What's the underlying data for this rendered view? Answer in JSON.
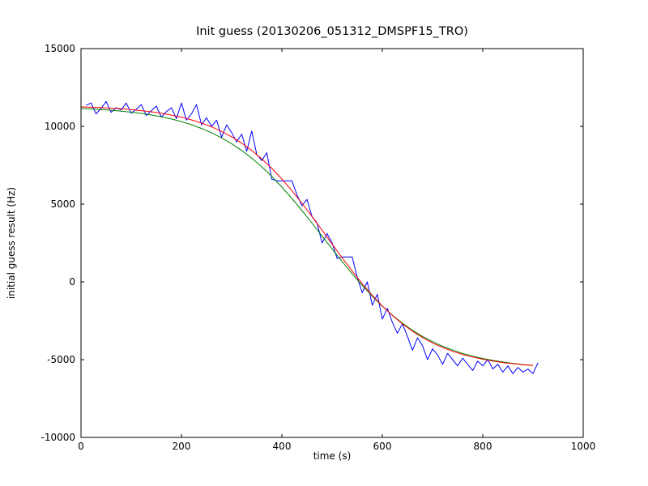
{
  "chart_data": {
    "type": "line",
    "title": "Init guess (20130206_051312_DMSPF15_TRO)",
    "xlabel": "time (s)",
    "ylabel": "initial guess result (Hz)",
    "xlim": [
      0,
      1000
    ],
    "ylim": [
      -10000,
      15000
    ],
    "xticks": [
      0,
      200,
      400,
      600,
      800,
      1000
    ],
    "yticks": [
      -10000,
      -5000,
      0,
      5000,
      10000,
      15000
    ],
    "grid": false,
    "legend_position": "none",
    "frame_color": "#000000",
    "series": [
      {
        "name": "raw-initial-guess",
        "color": "#0000ff",
        "x": [
          10,
          20,
          30,
          40,
          50,
          60,
          70,
          80,
          90,
          100,
          110,
          120,
          130,
          140,
          150,
          160,
          170,
          180,
          190,
          200,
          210,
          220,
          230,
          240,
          250,
          260,
          270,
          280,
          290,
          300,
          310,
          320,
          330,
          340,
          350,
          360,
          370,
          380,
          390,
          400,
          410,
          420,
          430,
          440,
          450,
          460,
          470,
          480,
          490,
          500,
          510,
          520,
          530,
          540,
          550,
          560,
          570,
          580,
          590,
          600,
          610,
          620,
          630,
          640,
          650,
          660,
          670,
          680,
          690,
          700,
          710,
          720,
          730,
          740,
          750,
          760,
          770,
          780,
          790,
          800,
          810,
          820,
          830,
          840,
          850,
          860,
          870,
          880,
          890,
          900,
          910
        ],
        "y": [
          11350,
          11500,
          10800,
          11150,
          11600,
          10900,
          11200,
          11050,
          11500,
          10850,
          11100,
          11400,
          10700,
          11000,
          11300,
          10600,
          10950,
          11200,
          10500,
          11500,
          10400,
          10800,
          11400,
          10100,
          10550,
          10000,
          10400,
          9300,
          10100,
          9600,
          9000,
          9500,
          8400,
          9700,
          8200,
          7800,
          8300,
          6600,
          6500,
          6500,
          6500,
          6500,
          5600,
          4900,
          5300,
          4200,
          3800,
          2500,
          3100,
          2500,
          1500,
          1600,
          1600,
          1600,
          300,
          -700,
          0,
          -1500,
          -800,
          -2400,
          -1700,
          -2600,
          -3300,
          -2700,
          -3500,
          -4400,
          -3600,
          -4100,
          -5000,
          -4300,
          -4700,
          -5300,
          -4600,
          -5000,
          -5400,
          -4900,
          -5300,
          -5700,
          -5100,
          -5400,
          -5000,
          -5600,
          -5300,
          -5800,
          -5400,
          -5900,
          -5500,
          -5800,
          -5600,
          -5900,
          -5200
        ]
      },
      {
        "name": "fit-green",
        "color": "#008000",
        "x": [
          0,
          20,
          40,
          60,
          80,
          100,
          120,
          140,
          160,
          180,
          200,
          220,
          240,
          260,
          280,
          300,
          320,
          340,
          360,
          380,
          400,
          420,
          440,
          460,
          480,
          500,
          520,
          540,
          560,
          580,
          600,
          620,
          640,
          660,
          680,
          700,
          720,
          740,
          760,
          780,
          800,
          820,
          840,
          860,
          880,
          900
        ],
        "y": [
          11153,
          11121,
          11083,
          11036,
          10980,
          10912,
          10831,
          10733,
          10615,
          10473,
          10305,
          10104,
          9867,
          9588,
          9262,
          8883,
          8448,
          7952,
          7394,
          6774,
          6095,
          5362,
          4585,
          3777,
          2950,
          2120,
          1305,
          517,
          -230,
          -926,
          -1565,
          -2141,
          -2656,
          -3109,
          -3504,
          -3846,
          -4138,
          -4387,
          -4598,
          -4776,
          -4925,
          -5049,
          -5153,
          -5239,
          -5310,
          -5370
        ]
      },
      {
        "name": "fit-red",
        "color": "#ff0000",
        "x": [
          0,
          20,
          40,
          60,
          80,
          100,
          120,
          140,
          160,
          180,
          200,
          220,
          240,
          260,
          280,
          300,
          320,
          340,
          360,
          380,
          400,
          420,
          440,
          460,
          480,
          500,
          520,
          540,
          560,
          580,
          600,
          620,
          640,
          660,
          680,
          700,
          720,
          740,
          760,
          780,
          800,
          820,
          840,
          860,
          880,
          900
        ],
        "y": [
          11253,
          11231,
          11203,
          11169,
          11128,
          11075,
          11013,
          10935,
          10840,
          10725,
          10586,
          10416,
          10213,
          9968,
          9676,
          9330,
          8923,
          8454,
          7910,
          7298,
          6612,
          5865,
          5054,
          4203,
          3321,
          2430,
          1547,
          696,
          -114,
          -863,
          -1548,
          -2160,
          -2703,
          -3173,
          -3579,
          -3926,
          -4217,
          -4462,
          -4666,
          -4835,
          -4975,
          -5090,
          -5185,
          -5262,
          -5325,
          -5377
        ]
      }
    ]
  }
}
